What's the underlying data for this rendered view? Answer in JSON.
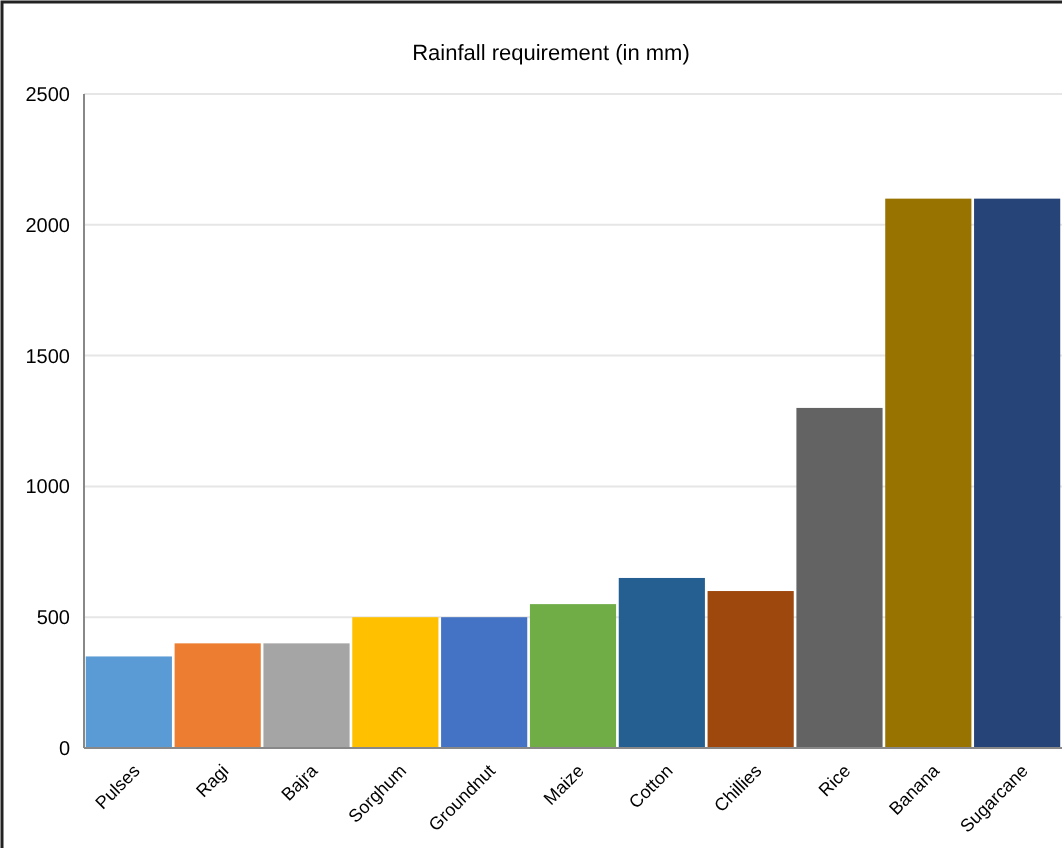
{
  "chart_data": {
    "type": "bar",
    "title": "Rainfall  requirement (in mm)",
    "categories": [
      "Pulses",
      "Ragi",
      "Bajra",
      "Sorghum",
      "Groundnut",
      "Maize",
      "Cotton",
      "Chillies",
      "Rice",
      "Banana",
      "Sugarcane"
    ],
    "values": [
      350,
      400,
      400,
      500,
      500,
      550,
      650,
      600,
      1300,
      2100,
      2100
    ],
    "colors": [
      "#5b9bd5",
      "#ed7d31",
      "#a5a5a5",
      "#ffc000",
      "#4472c4",
      "#70ad47",
      "#255e91",
      "#9e480e",
      "#636363",
      "#997300",
      "#264478"
    ],
    "ylim": [
      0,
      2500
    ],
    "yticks": [
      0,
      500,
      1000,
      1500,
      2000,
      2500
    ],
    "grid": "y"
  }
}
